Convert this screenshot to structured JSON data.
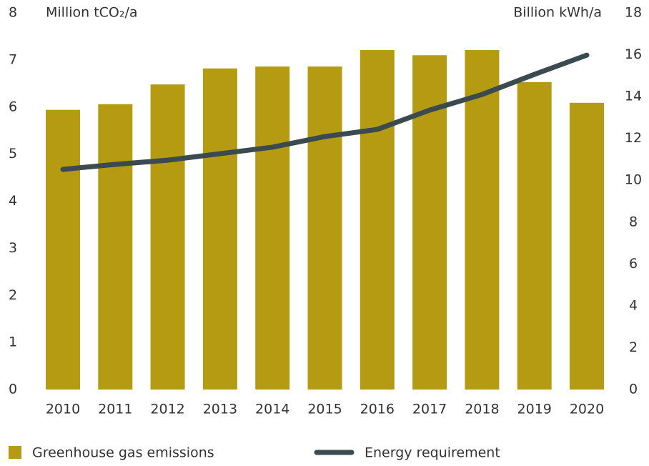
{
  "chart_data": {
    "type": "bar",
    "ylabel": "Million tCO₂/a",
    "y2label": "Billion kWh/a",
    "categories": [
      "2010",
      "2011",
      "2012",
      "2013",
      "2014",
      "2015",
      "2016",
      "2017",
      "2018",
      "2019",
      "2020"
    ],
    "series": [
      {
        "name": "Greenhouse gas emissions",
        "type": "bar",
        "color": "#b49b12",
        "values": [
          5.94,
          6.06,
          6.48,
          6.82,
          6.86,
          6.86,
          7.21,
          7.1,
          7.21,
          6.53,
          6.09
        ]
      },
      {
        "name": "Energy requirement",
        "type": "line",
        "axis": "y2",
        "color": "#3b4a4f",
        "values": [
          10.52,
          10.76,
          10.96,
          11.27,
          11.58,
          12.09,
          12.43,
          13.35,
          14.1,
          15.06,
          15.98
        ]
      }
    ],
    "ylim": [
      0,
      8
    ],
    "yticks": [
      0,
      1,
      2,
      3,
      4,
      5,
      6,
      7,
      8
    ],
    "y2lim": [
      0,
      18
    ],
    "y2ticks": [
      0,
      2,
      4,
      6,
      8,
      10,
      12,
      14,
      16,
      18
    ],
    "grid": false,
    "legend": "bottom"
  }
}
